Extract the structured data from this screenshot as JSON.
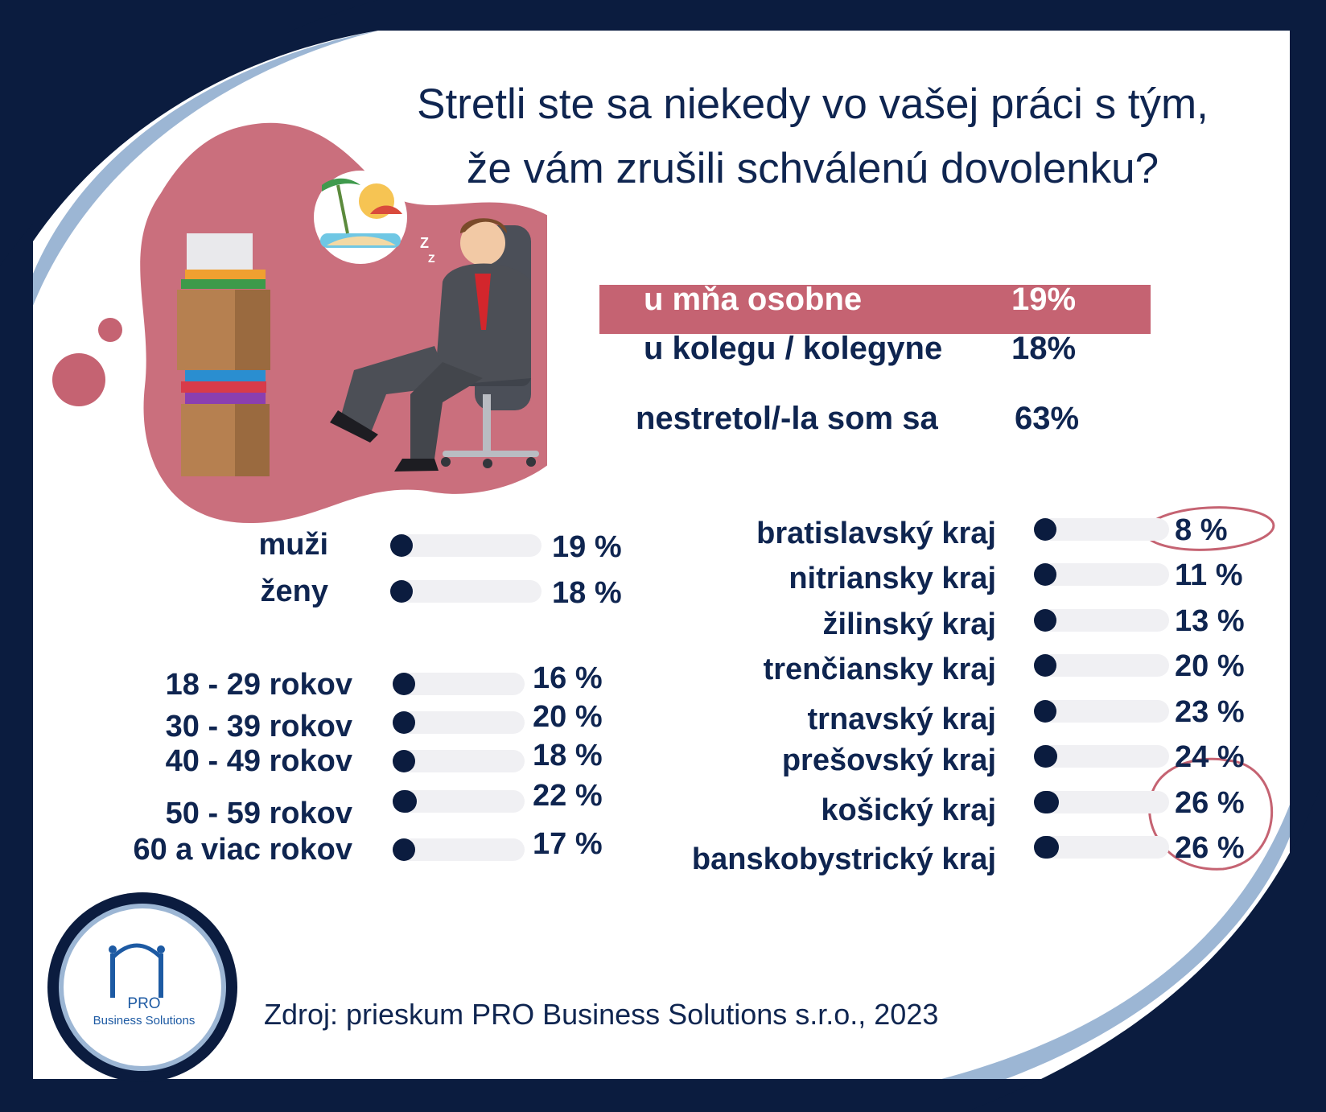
{
  "title": {
    "line1": "Stretli ste sa niekedy vo vašej práci s tým,",
    "line2": "že vám zrušili schválenú dovolenku?"
  },
  "colors": {
    "navy": "#0b1c3f",
    "text": "#0f2550",
    "pink": "#c56372",
    "light_blue": "#9cb6d4",
    "track": "#f0f0f3"
  },
  "icons": [
    "sleeping-businessman-illustration",
    "beach-dream-bubble-icon",
    "stacked-boxes-folders-illustration",
    "company-logo"
  ],
  "chart_data": [
    {
      "type": "table",
      "categories": [
        "u mňa osobne",
        "u kolegu / kolegyne",
        "nestretol/-la som sa"
      ],
      "values": [
        19,
        18,
        63
      ],
      "value_labels": [
        "19%",
        "18%",
        "63%"
      ],
      "highlighted": "u mňa osobne"
    },
    {
      "type": "bar",
      "categories": [
        "muži",
        "ženy"
      ],
      "values": [
        19,
        18
      ],
      "value_labels": [
        "19 %",
        "18 %"
      ],
      "ylim": [
        0,
        100
      ]
    },
    {
      "type": "bar",
      "categories": [
        "18 - 29 rokov",
        "30 - 39 rokov",
        "40 - 49 rokov",
        "50 - 59 rokov",
        "60 a viac rokov"
      ],
      "values": [
        16,
        20,
        18,
        22,
        17
      ],
      "value_labels": [
        "16 %",
        "20 %",
        "18 %",
        "22 %",
        "17 %"
      ],
      "ylim": [
        0,
        100
      ]
    },
    {
      "type": "bar",
      "categories": [
        "bratislavský kraj",
        "nitriansky kraj",
        "žilinský kraj",
        "trenčiansky kraj",
        "trnavský kraj",
        "prešovský kraj",
        "košický kraj",
        "banskobystrický kraj"
      ],
      "values": [
        8,
        11,
        13,
        20,
        23,
        24,
        26,
        26
      ],
      "value_labels": [
        "8 %",
        "11 %",
        "13 %",
        "20 %",
        "23 %",
        "24 %",
        "26 %",
        "26 %"
      ],
      "circled": [
        "bratislavský kraj",
        "košický kraj",
        "banskobystrický kraj"
      ],
      "ylim": [
        0,
        100
      ]
    }
  ],
  "logo": {
    "line1": "PRO",
    "line2": "Business Solutions"
  },
  "source": "Zdroj: prieskum PRO Business Solutions s.r.o., 2023"
}
